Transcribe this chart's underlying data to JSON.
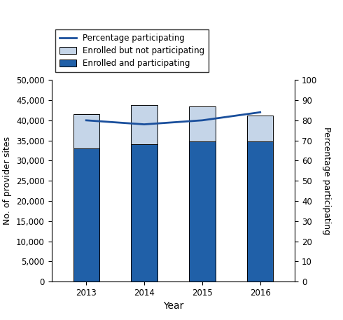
{
  "years": [
    2013,
    2014,
    2015,
    2016
  ],
  "enrolled_participating": [
    33000,
    34000,
    34800,
    34800
  ],
  "enrolled_not_participating": [
    8600,
    9800,
    8600,
    6400
  ],
  "pct_participating": [
    80,
    78,
    80,
    84
  ],
  "bar_color_participating": "#2060a8",
  "bar_color_not_participating": "#c5d5e8",
  "line_color": "#1a4f9c",
  "ylabel_left": "No. of provider sites",
  "ylabel_right": "Percentage participating",
  "xlabel": "Year",
  "ylim_left": [
    0,
    50000
  ],
  "ylim_right": [
    0,
    100
  ],
  "yticks_left": [
    0,
    5000,
    10000,
    15000,
    20000,
    25000,
    30000,
    35000,
    40000,
    45000,
    50000
  ],
  "yticks_right": [
    0,
    10,
    20,
    30,
    40,
    50,
    60,
    70,
    80,
    90,
    100
  ],
  "legend_line_label": "Percentage participating",
  "legend_bar1_label": "Enrolled but not participating",
  "legend_bar2_label": "Enrolled and participating",
  "bar_width": 0.45,
  "bar_edge_color": "#000000",
  "bar_edge_width": 0.7
}
